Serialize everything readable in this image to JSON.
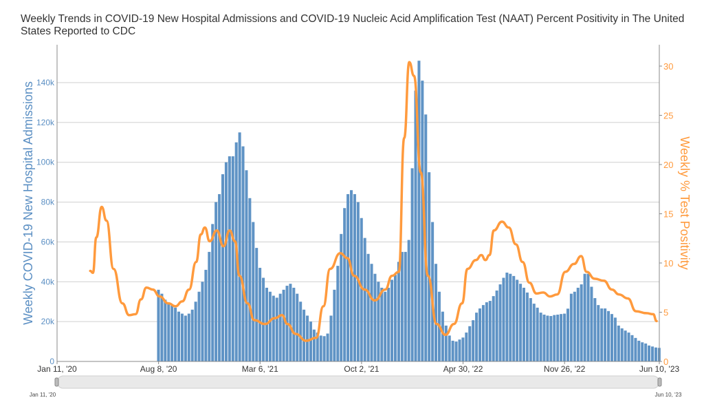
{
  "chart_data": {
    "type": "bar+line",
    "title": "Weekly Trends in COVID-19 New Hospital Admissions and COVID-19 Nucleic Acid Amplification Test (NAAT) Percent Positivity in The United States Reported to CDC",
    "ylabel": "Weekly COVID-19 New Hospital Admissions",
    "y2label": "Weekly % Test Positivity",
    "ylim": [
      0,
      150000
    ],
    "y2lim": [
      0,
      31.5
    ],
    "yticks": [
      "0",
      "20k",
      "40k",
      "60k",
      "80k",
      "100k",
      "120k",
      "140k"
    ],
    "y2ticks": [
      "0",
      "5",
      "10",
      "15",
      "20",
      "25",
      "30"
    ],
    "x_unit": "weeks since Jan 11, 2020",
    "xlim": [
      0,
      178
    ],
    "xticks": [
      {
        "label": "Jan 11, '20",
        "week": 0
      },
      {
        "label": "Aug 8, '20",
        "week": 30
      },
      {
        "label": "Mar 6, '21",
        "week": 60
      },
      {
        "label": "Oct 2, '21",
        "week": 90
      },
      {
        "label": "Apr 30, '22",
        "week": 120
      },
      {
        "label": "Nov 26, '22",
        "week": 150
      },
      {
        "label": "Jun 10, '23",
        "week": 178
      }
    ],
    "grid": true,
    "colors": {
      "bars": "#5f93c5",
      "line": "#ff9a3d",
      "left_axis": "#5b8fc3",
      "right_axis": "#ff9a3d"
    },
    "series": [
      {
        "name": "Weekly COVID-19 New Hospital Admissions (thousands)",
        "type": "bar",
        "start_week": 30,
        "values_thousands": [
          36,
          34,
          31,
          29,
          28,
          27,
          25,
          24,
          23,
          24,
          26,
          30,
          35,
          40,
          46,
          55,
          69,
          80,
          84,
          94,
          100,
          103,
          103,
          110,
          115,
          108,
          96,
          82,
          70,
          57,
          47,
          42,
          37,
          35,
          33,
          32,
          34,
          36,
          38,
          39,
          37,
          34,
          30,
          26,
          23,
          20,
          16,
          14.5,
          13,
          12.7,
          14,
          23,
          36,
          48,
          64,
          77,
          84,
          86,
          84,
          80,
          72,
          62,
          54,
          49,
          44,
          40,
          37,
          35,
          37,
          41,
          43.5,
          50,
          55,
          55,
          61,
          97,
          136,
          151,
          141,
          124,
          95,
          70,
          49,
          35,
          25,
          18,
          13,
          10.4,
          10,
          11,
          12,
          14.5,
          17.7,
          20.7,
          24.5,
          26.6,
          28.3,
          29.7,
          30.4,
          32.8,
          35.6,
          38.7,
          42,
          44.6,
          44,
          42.9,
          41,
          39,
          37,
          34.6,
          31.8,
          29,
          27,
          24.5,
          23.5,
          23,
          22.8,
          23.3,
          23.5,
          23.8,
          24,
          26.5,
          34,
          35,
          37,
          38.7,
          44,
          44,
          37.5,
          31.8,
          28.3,
          26.6,
          26.6,
          25.3,
          23.8,
          22,
          18,
          16.6,
          15.5,
          14.5,
          13.2,
          11.8,
          10.4,
          9.6,
          9,
          8,
          7.5,
          7,
          6.8
        ]
      },
      {
        "name": "Weekly % Test Positivity",
        "type": "line",
        "points": [
          [
            9.8,
            9.2
          ],
          [
            10.6,
            9
          ],
          [
            11.6,
            12.6
          ],
          [
            13.2,
            15.7
          ],
          [
            14.6,
            14.3
          ],
          [
            16.7,
            9.4
          ],
          [
            19.3,
            5.9
          ],
          [
            21.3,
            4.7
          ],
          [
            23.2,
            4.8
          ],
          [
            24.8,
            6.3
          ],
          [
            26.4,
            7.5
          ],
          [
            28.3,
            7.3
          ],
          [
            30.3,
            6.6
          ],
          [
            32.9,
            5.9
          ],
          [
            35,
            5.6
          ],
          [
            37,
            6.1
          ],
          [
            39,
            7.3
          ],
          [
            41.1,
            10.1
          ],
          [
            42.5,
            12.9
          ],
          [
            43.7,
            13.6
          ],
          [
            45.1,
            12.2
          ],
          [
            47.2,
            13.3
          ],
          [
            49.2,
            11.7
          ],
          [
            51,
            13.3
          ],
          [
            52.6,
            12.2
          ],
          [
            53.9,
            8.7
          ],
          [
            56.3,
            5.9
          ],
          [
            58.3,
            4.2
          ],
          [
            61.4,
            3.8
          ],
          [
            64.4,
            4.4
          ],
          [
            66.5,
            4.7
          ],
          [
            68.1,
            3.8
          ],
          [
            70.5,
            2.8
          ],
          [
            73.6,
            2.1
          ],
          [
            76.6,
            2.4
          ],
          [
            78.7,
            5.6
          ],
          [
            80.7,
            9.4
          ],
          [
            83.7,
            11
          ],
          [
            85.8,
            10.5
          ],
          [
            87.8,
            8.7
          ],
          [
            90.9,
            7.3
          ],
          [
            93.9,
            6.2
          ],
          [
            97,
            7.3
          ],
          [
            99,
            8.7
          ],
          [
            101,
            9.1
          ],
          [
            102.6,
            22.7
          ],
          [
            104.1,
            30.4
          ],
          [
            105.5,
            29
          ],
          [
            107.5,
            19.2
          ],
          [
            109.6,
            8.7
          ],
          [
            112.2,
            3.8
          ],
          [
            114.8,
            2.7
          ],
          [
            117.3,
            3.8
          ],
          [
            119.7,
            5.9
          ],
          [
            121.3,
            9.4
          ],
          [
            123.8,
            10.3
          ],
          [
            125.4,
            10.8
          ],
          [
            126.6,
            10.3
          ],
          [
            127.8,
            10.8
          ],
          [
            129.1,
            13.3
          ],
          [
            131.5,
            14.2
          ],
          [
            133.5,
            13.6
          ],
          [
            135.6,
            11.9
          ],
          [
            137.6,
            10.1
          ],
          [
            139.6,
            8
          ],
          [
            141.7,
            6.9
          ],
          [
            143.7,
            7
          ],
          [
            145.7,
            6.6
          ],
          [
            147.8,
            6.8
          ],
          [
            150.2,
            9.1
          ],
          [
            152.8,
            9.9
          ],
          [
            154.9,
            10.7
          ],
          [
            156.5,
            9.1
          ],
          [
            158.9,
            8.4
          ],
          [
            161.6,
            8.2
          ],
          [
            164,
            7.3
          ],
          [
            166.1,
            6.8
          ],
          [
            168.7,
            6.4
          ],
          [
            171.1,
            5.1
          ],
          [
            174.2,
            4.9
          ],
          [
            176.2,
            4.8
          ],
          [
            177.2,
            4.1
          ]
        ]
      }
    ],
    "range_slider": {
      "start_label": "Jan 11, '20",
      "end_label": "Jun 10, '23"
    }
  }
}
